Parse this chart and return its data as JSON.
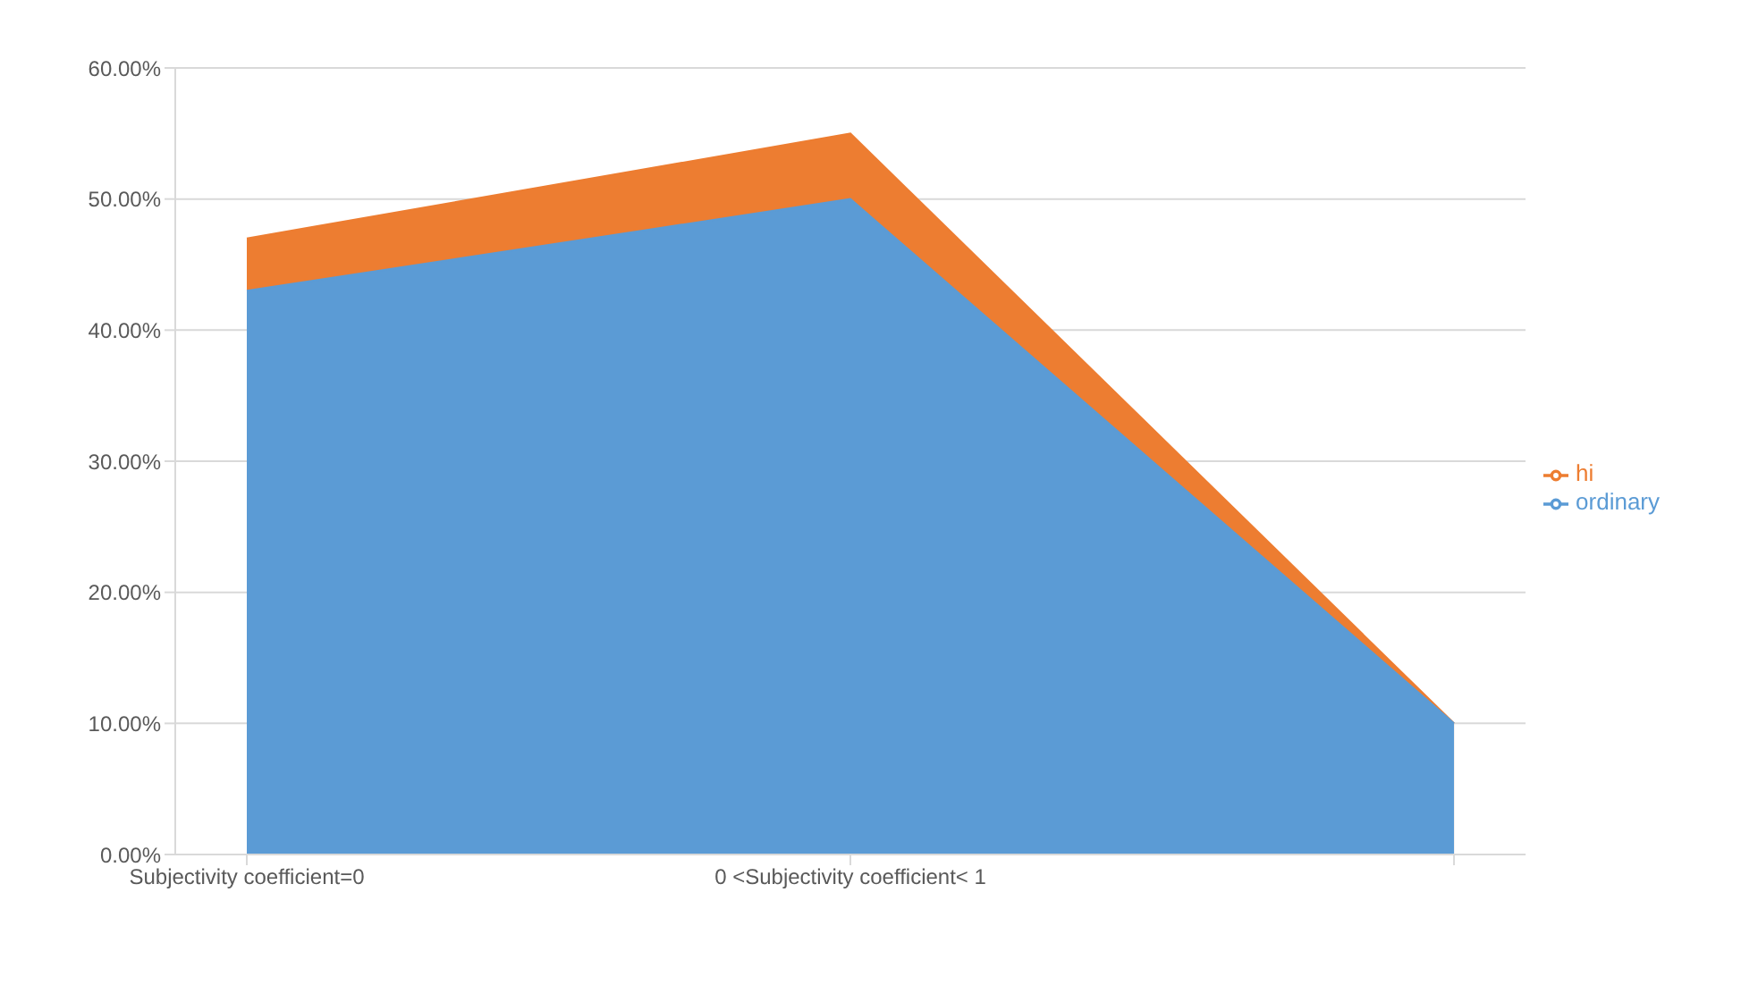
{
  "chart_data": {
    "type": "area",
    "categories": [
      "Subjectivity coefficient=0",
      "0 <Subjectivity coefficient< 1",
      null
    ],
    "series": [
      {
        "name": "hi",
        "color": "#ed7d31",
        "values": [
          0.47,
          0.55,
          0.1
        ]
      },
      {
        "name": "ordinary",
        "color": "#5b9bd5",
        "values": [
          0.43,
          0.5,
          0.1
        ]
      }
    ],
    "ylim": [
      0,
      0.6
    ],
    "yticks": [
      {
        "value": 0,
        "label": "0.00%"
      },
      {
        "value": 0.1,
        "label": "10.00%"
      },
      {
        "value": 0.2,
        "label": "20.00%"
      },
      {
        "value": 0.3,
        "label": "30.00%"
      },
      {
        "value": 0.4,
        "label": "40.00%"
      },
      {
        "value": 0.5,
        "label": "50.00%"
      },
      {
        "value": 0.6,
        "label": "60.00%"
      }
    ],
    "grid": "y",
    "legend": "right"
  }
}
